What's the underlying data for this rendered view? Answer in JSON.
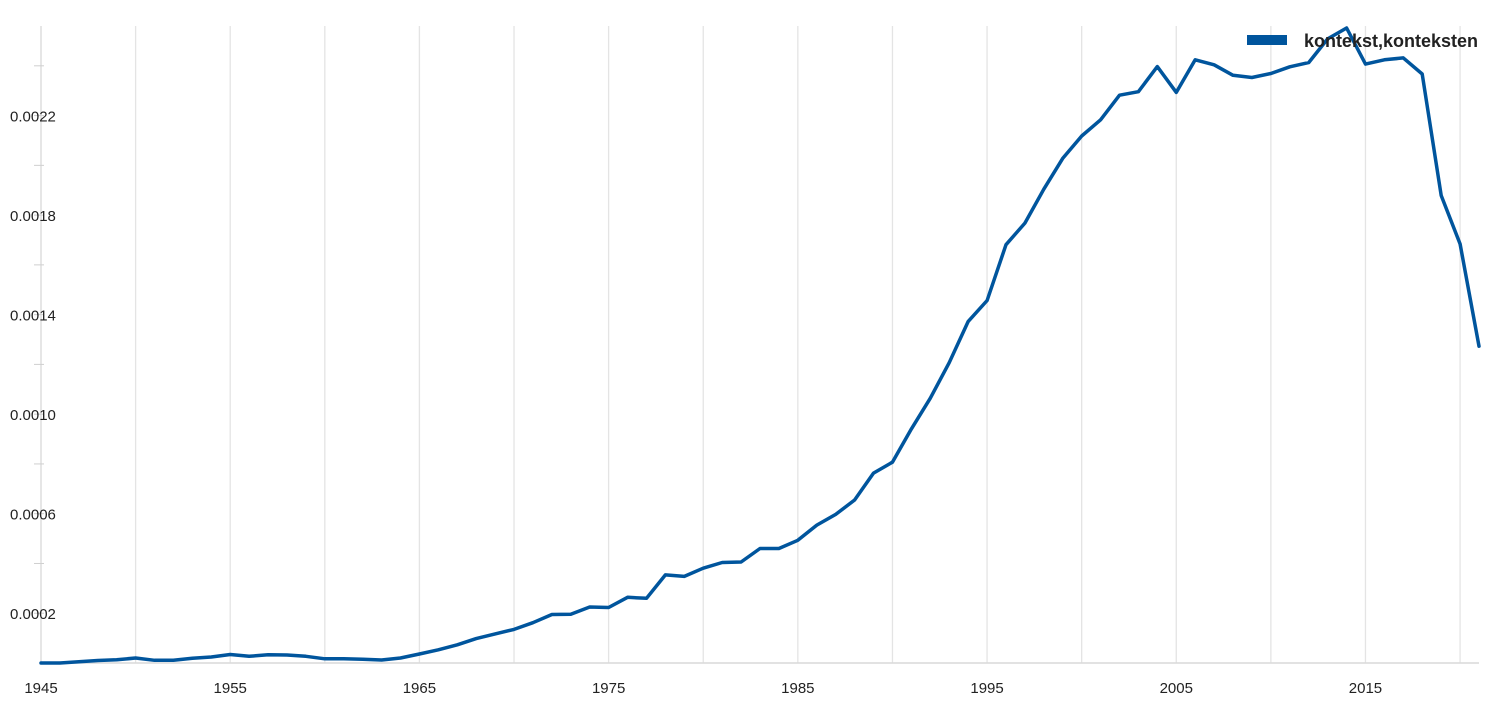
{
  "colors": {
    "series": "#00559d",
    "grid": "#e4e4e4",
    "axis": "#d9d9d9",
    "minor_tick": "#cfcfcf",
    "text": "#222222"
  },
  "legend": {
    "label": "kontekst,konteksten",
    "position": "top-right"
  },
  "chart_data": {
    "type": "line",
    "title": "",
    "xlabel": "",
    "ylabel": "",
    "xlim": [
      1945,
      2021
    ],
    "ylim": [
      0,
      0.00256
    ],
    "grid": true,
    "legend_position": "top-right",
    "x_ticks": [
      1945,
      1955,
      1965,
      1975,
      1985,
      1995,
      2005,
      2015
    ],
    "x_tick_labels": [
      "1945",
      "1955",
      "1965",
      "1975",
      "1985",
      "1995",
      "2005",
      "2015"
    ],
    "x_gridlines": [
      1950,
      1955,
      1960,
      1965,
      1970,
      1975,
      1980,
      1985,
      1990,
      1995,
      2000,
      2005,
      2010,
      2015,
      2020
    ],
    "y_ticks": [
      0.0002,
      0.0006,
      0.001,
      0.0014,
      0.0018,
      0.0022
    ],
    "y_tick_labels": [
      "0.0002",
      "0.0006",
      "0.0010",
      "0.0014",
      "0.0018",
      "0.0022"
    ],
    "y_minor_ticks": [
      0.0004,
      0.0008,
      0.0012,
      0.0016,
      0.002,
      0.0024
    ],
    "x": [
      1945,
      1946,
      1947,
      1948,
      1949,
      1950,
      1951,
      1952,
      1953,
      1954,
      1955,
      1956,
      1957,
      1958,
      1959,
      1960,
      1961,
      1962,
      1963,
      1964,
      1965,
      1966,
      1967,
      1968,
      1969,
      1970,
      1971,
      1972,
      1973,
      1974,
      1975,
      1976,
      1977,
      1978,
      1979,
      1980,
      1981,
      1982,
      1983,
      1984,
      1985,
      1986,
      1987,
      1988,
      1989,
      1990,
      1991,
      1992,
      1993,
      1994,
      1995,
      1996,
      1997,
      1998,
      1999,
      2000,
      2001,
      2002,
      2003,
      2004,
      2005,
      2006,
      2007,
      2008,
      2009,
      2010,
      2011,
      2012,
      2013,
      2014,
      2015,
      2016,
      2017,
      2018,
      2019,
      2020,
      2021
    ],
    "series": [
      {
        "name": "kontekst,konteksten",
        "values": [
          0.0,
          0.0,
          5e-06,
          1e-05,
          1.3e-05,
          2e-05,
          1.1e-05,
          1.1e-05,
          1.9e-05,
          2.4e-05,
          3.4e-05,
          2.7e-05,
          3.3e-05,
          3.2e-05,
          2.7e-05,
          1.7e-05,
          1.7e-05,
          1.5e-05,
          1.2e-05,
          2e-05,
          3.6e-05,
          5.3e-05,
          7.3e-05,
          9.8e-05,
          0.000117,
          0.000135,
          0.000162,
          0.000195,
          0.000196,
          0.000225,
          0.000223,
          0.000264,
          0.00026,
          0.000354,
          0.000348,
          0.000381,
          0.000404,
          0.000406,
          0.00046,
          0.00046,
          0.000493,
          0.000554,
          0.000597,
          0.000655,
          0.000763,
          0.000807,
          0.000941,
          0.001064,
          0.001207,
          0.001372,
          0.001457,
          0.001681,
          0.001768,
          0.001904,
          0.002028,
          0.002118,
          0.002183,
          0.002282,
          0.002296,
          0.002397,
          0.002293,
          0.002424,
          0.002404,
          0.002362,
          0.002353,
          0.002369,
          0.002396,
          0.002413,
          0.002508,
          0.002552,
          0.002407,
          0.002424,
          0.002432,
          0.002367,
          0.001879,
          0.001684,
          0.001273
        ]
      }
    ]
  }
}
